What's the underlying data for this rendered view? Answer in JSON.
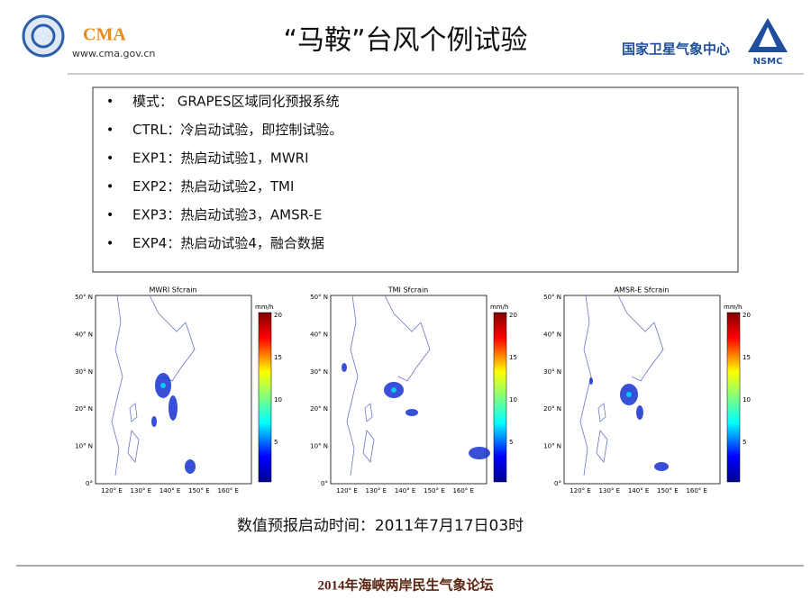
{
  "header": {
    "logo_text": "CMA",
    "url": "www.cma.gov.cn",
    "title": "“马鞍”台风个例试验",
    "org": "国家卫星气象中心",
    "org_abbr": "NSMC"
  },
  "bullets": [
    "模式： GRAPES区域同化预报系统",
    "CTRL：冷启动试验，即控制试验。",
    "EXP1：热启动试验1，MWRI",
    "EXP2：热启动试验2，TMI",
    "EXP3：热启动试验3，AMSR-E",
    "EXP4：热启动试验4，融合数据"
  ],
  "panels": [
    {
      "title": "MWRI Sfcrain"
    },
    {
      "title": "TMI Sfcrain"
    },
    {
      "title": "AMSR-E Sfcrain"
    }
  ],
  "lat_labels": [
    "50° N",
    "40° N",
    "30° N",
    "20° N",
    "10° N",
    "0°"
  ],
  "lon_labels": [
    "120° E",
    "130° E",
    "140° E",
    "150° E",
    "160° E"
  ],
  "colorbar": {
    "unit": "mm/h",
    "ticks": [
      20,
      15,
      10,
      5
    ]
  },
  "caption": "数值预报启动时间：2011年7月17日03时",
  "footer": "2014年海峡两岸民生气象论坛"
}
